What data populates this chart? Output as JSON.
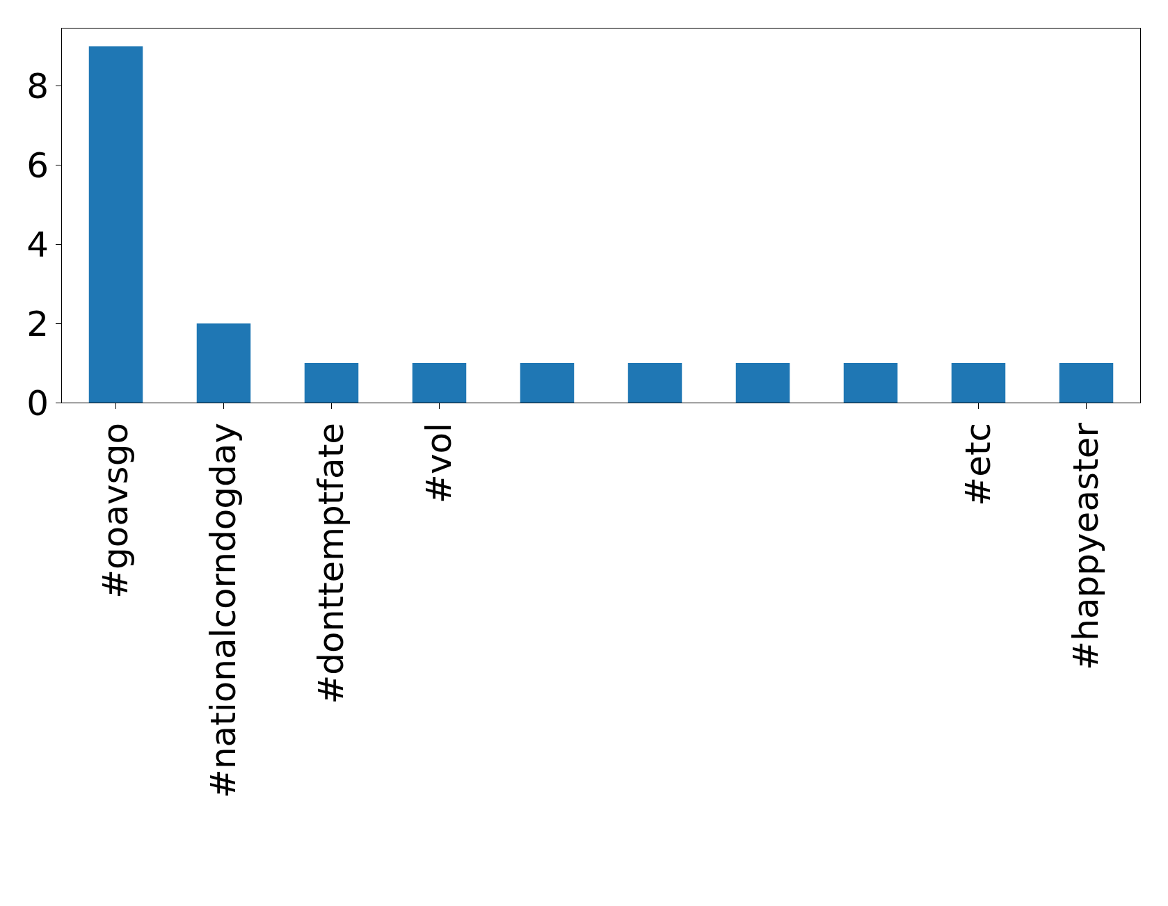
{
  "chart_data": {
    "type": "bar",
    "categories": [
      "#goavsgo",
      "#nationalcorndogday",
      "#donttemptfate",
      "#vol",
      null,
      null,
      null,
      null,
      "#etc",
      "#happyeaster"
    ],
    "values": [
      9,
      2,
      1,
      1,
      1,
      1,
      1,
      1,
      1,
      1
    ],
    "color": "#1f77b4",
    "ylim": [
      0,
      9.45
    ],
    "yticks": [
      0,
      2,
      4,
      6,
      8
    ],
    "grid": false,
    "legend": false
  }
}
